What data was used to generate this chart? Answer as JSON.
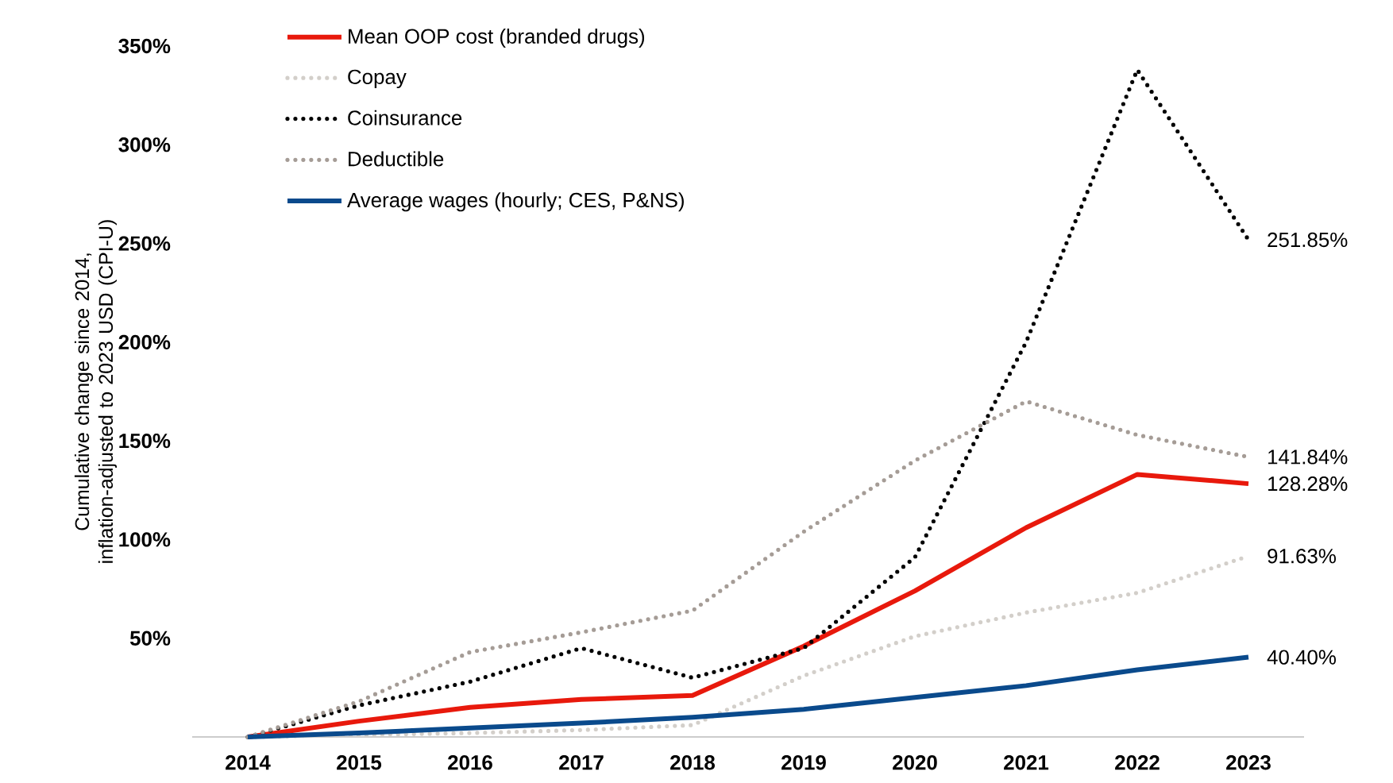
{
  "chart_data": {
    "type": "line",
    "ylabel": "Cumulative change since 2014, inflation-adjusted to 2023 USD (CPI-U)",
    "categories": [
      "2014",
      "2015",
      "2016",
      "2017",
      "2018",
      "2019",
      "2020",
      "2021",
      "2022",
      "2023"
    ],
    "series": [
      {
        "name": "Mean OOP cost (branded drugs)",
        "color": "#e8190c",
        "line_style": "solid",
        "values": [
          0,
          8,
          15,
          19,
          21,
          46,
          74,
          106,
          133,
          128.28
        ],
        "value_labels": [
          null,
          null,
          null,
          null,
          null,
          null,
          null,
          null,
          null,
          "128.28%"
        ]
      },
      {
        "name": "Copay",
        "color": "#d3cfca",
        "line_style": "dotted",
        "values": [
          0,
          1,
          2,
          3.5,
          6,
          31,
          51,
          63,
          73,
          91.63
        ],
        "value_labels": [
          null,
          null,
          null,
          null,
          null,
          null,
          null,
          null,
          null,
          "91.63%"
        ]
      },
      {
        "name": "Coinsurance",
        "color": "#000000",
        "line_style": "dotted",
        "values": [
          0,
          16,
          28,
          45,
          30,
          45,
          91,
          200,
          338,
          251.85
        ],
        "value_labels": [
          null,
          null,
          null,
          null,
          null,
          null,
          null,
          null,
          null,
          "251.85%"
        ]
      },
      {
        "name": "Deductible",
        "color": "#a59c96",
        "line_style": "dotted",
        "values": [
          0,
          18,
          43,
          53,
          64,
          104,
          140,
          170,
          153,
          141.84
        ],
        "value_labels": [
          null,
          null,
          null,
          null,
          null,
          null,
          null,
          null,
          null,
          "141.84%"
        ]
      },
      {
        "name": "Average wages (hourly; CES, P&NS)",
        "color": "#0a4a8c",
        "line_style": "solid",
        "values": [
          0,
          2,
          4.5,
          7,
          10,
          14,
          20,
          26,
          34,
          40.4
        ],
        "value_labels": [
          null,
          null,
          null,
          null,
          null,
          null,
          null,
          null,
          null,
          "40.40%"
        ]
      }
    ],
    "ylim": [
      0,
      350
    ],
    "yticks": [
      {
        "value": 50,
        "label": "50%"
      },
      {
        "value": 100,
        "label": "100%"
      },
      {
        "value": 150,
        "label": "150%"
      },
      {
        "value": 200,
        "label": "200%"
      },
      {
        "value": 250,
        "label": "250%"
      },
      {
        "value": 300,
        "label": "300%"
      },
      {
        "value": 350,
        "label": "350%"
      }
    ],
    "legend": "top left"
  }
}
